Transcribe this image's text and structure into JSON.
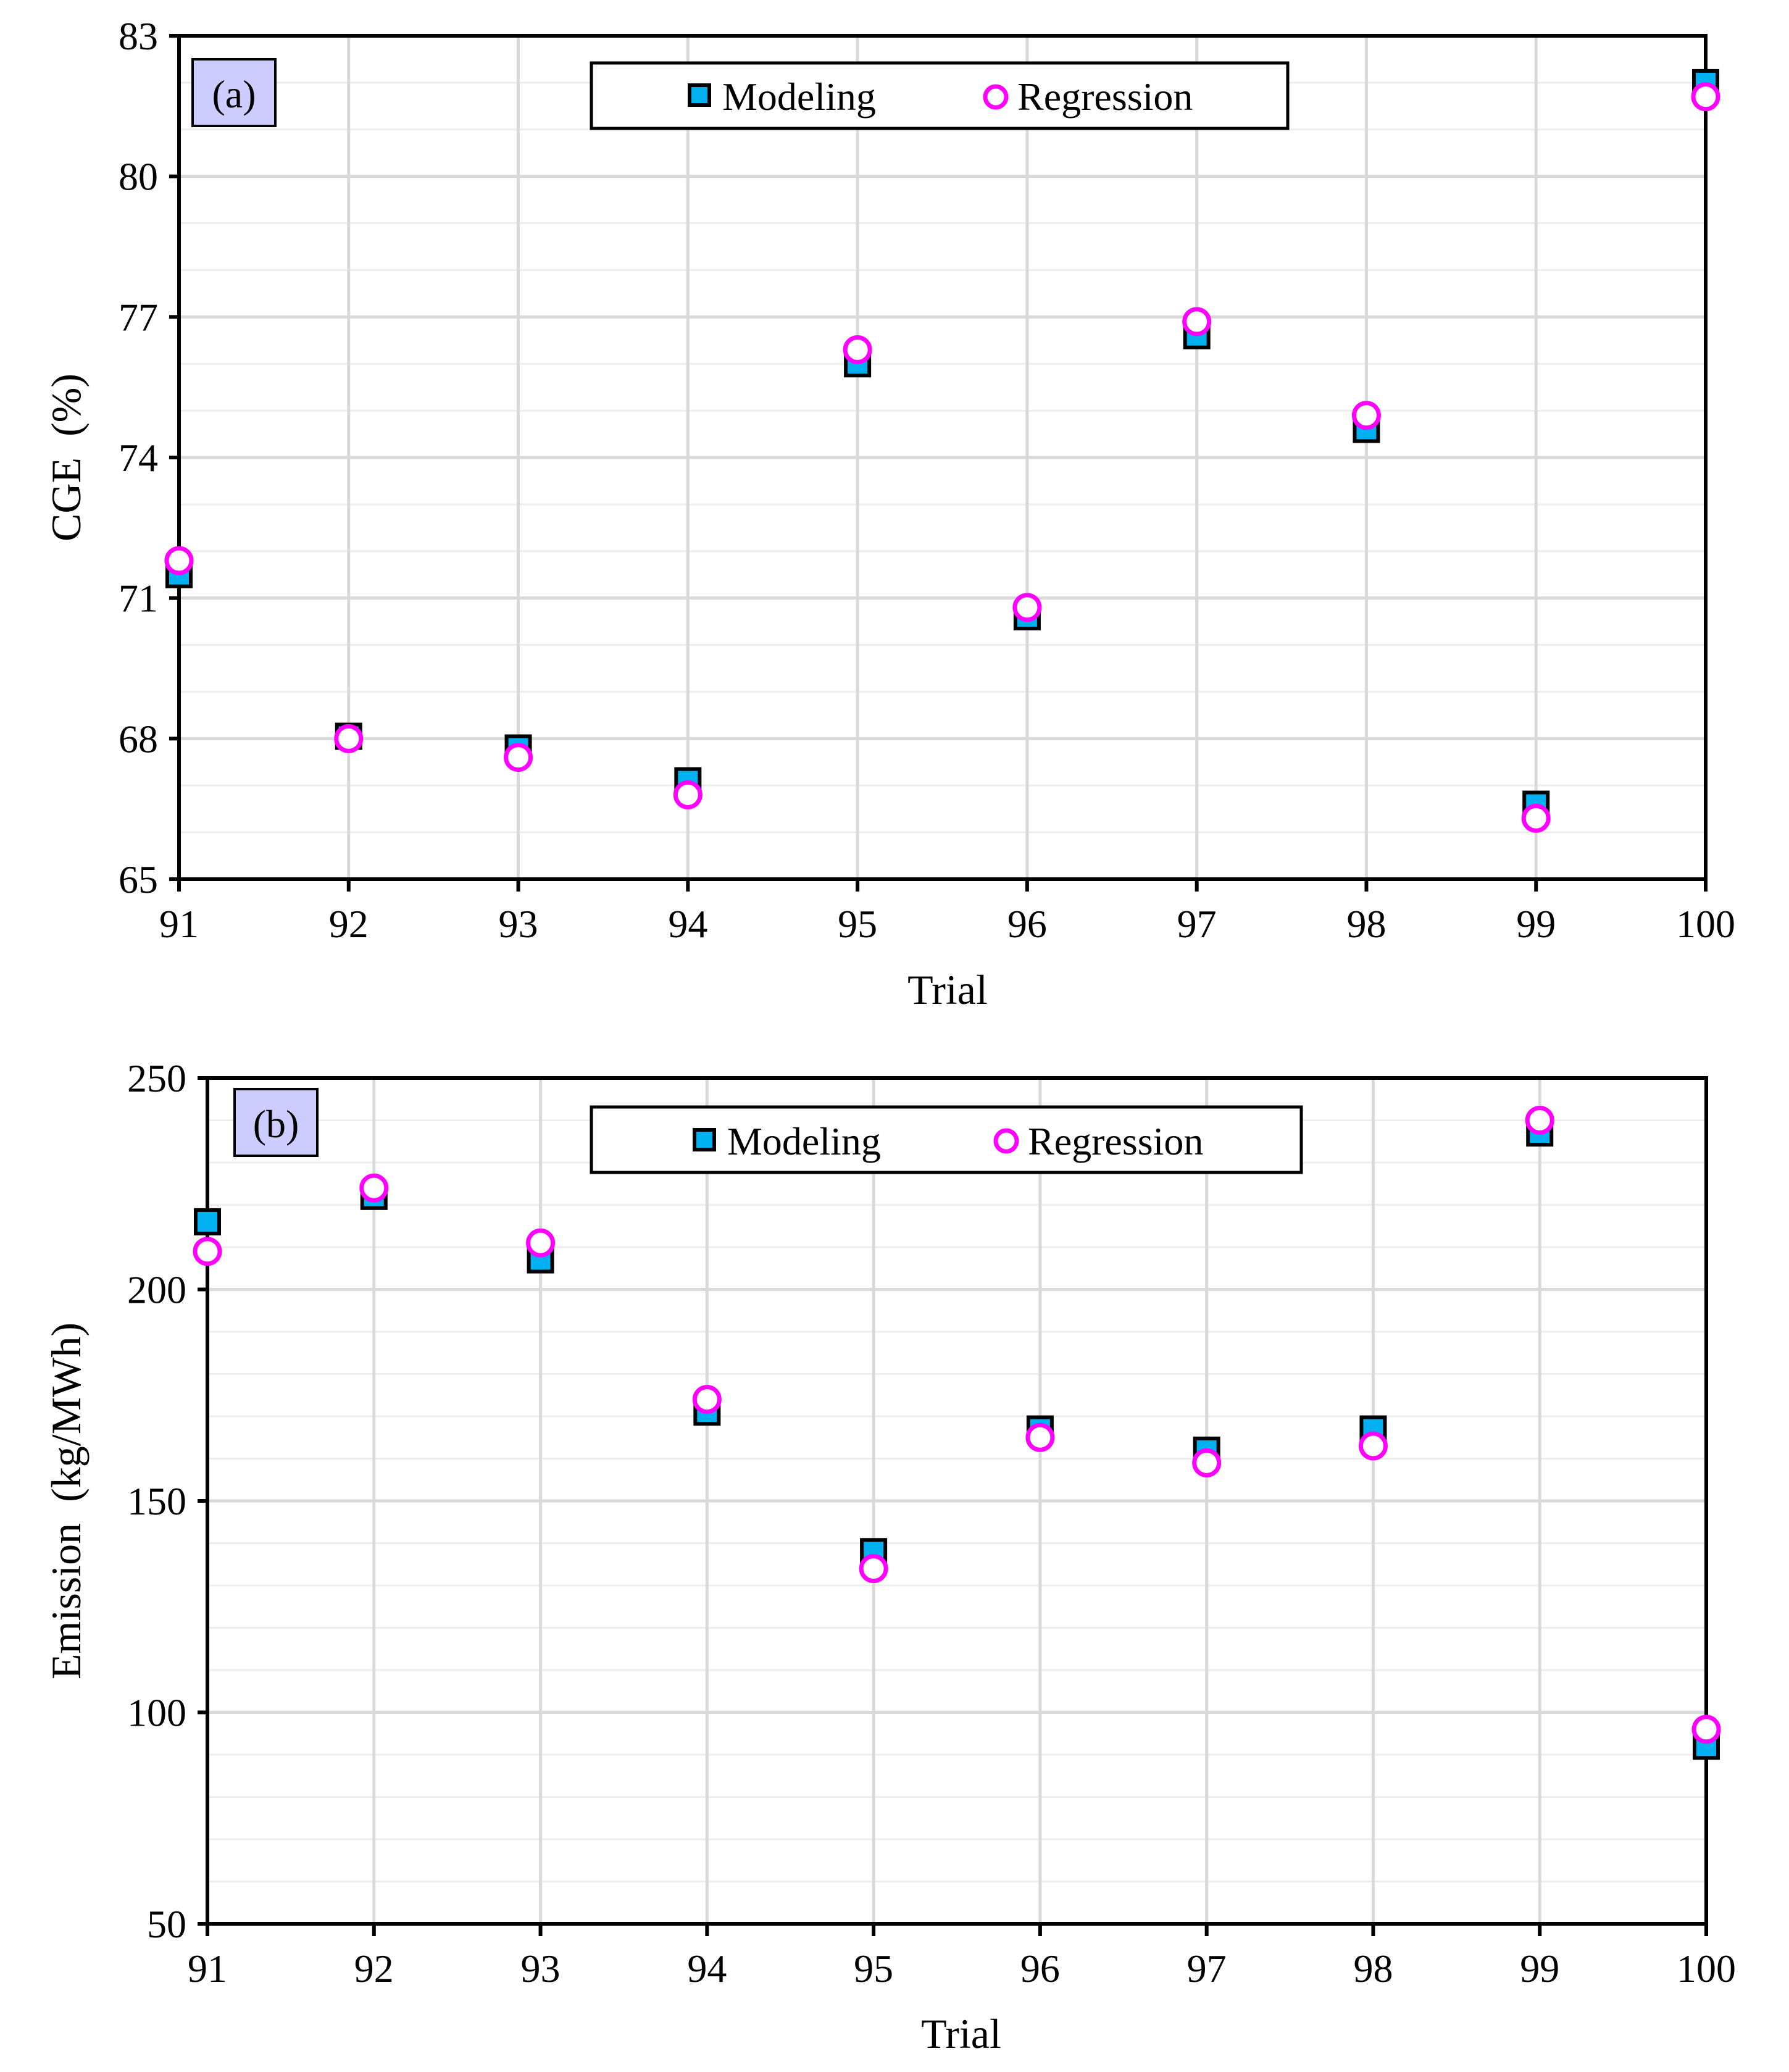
{
  "colors": {
    "modeling_fill": "#00b0f0",
    "modeling_edge": "#000000",
    "regression_edge": "#ff00ff",
    "panel_label_bg": "#ccccff",
    "grid": "#d9d9d9"
  },
  "chart_data": [
    {
      "type": "scatter",
      "panel_label": "(a)",
      "title": "",
      "xlabel": "Trial",
      "ylabel": "CGE  (%)",
      "x": [
        91,
        92,
        93,
        94,
        95,
        96,
        97,
        98,
        99,
        100
      ],
      "xticks": [
        "91",
        "92",
        "93",
        "94",
        "95",
        "96",
        "97",
        "98",
        "99",
        "100"
      ],
      "yticks": [
        "65",
        "68",
        "71",
        "74",
        "77",
        "80",
        "83"
      ],
      "ylim": [
        65,
        83
      ],
      "xlim": [
        91,
        100
      ],
      "grid": true,
      "legend_position": "top-center",
      "series": [
        {
          "name": "Modeling",
          "marker": "square",
          "values": [
            71.5,
            68.05,
            67.8,
            67.1,
            76.0,
            70.6,
            76.6,
            74.6,
            66.6,
            82.0
          ]
        },
        {
          "name": "Regression",
          "marker": "circle",
          "values": [
            71.8,
            68.0,
            67.6,
            66.8,
            76.3,
            70.8,
            76.9,
            74.9,
            66.3,
            81.7
          ]
        }
      ]
    },
    {
      "type": "scatter",
      "panel_label": "(b)",
      "title": "",
      "xlabel": "Trial",
      "ylabel": "Emission  (kg/MWh)",
      "x": [
        91,
        92,
        93,
        94,
        95,
        96,
        97,
        98,
        99,
        100
      ],
      "xticks": [
        "91",
        "92",
        "93",
        "94",
        "95",
        "96",
        "97",
        "98",
        "99",
        "100"
      ],
      "yticks": [
        "50",
        "100",
        "150",
        "200",
        "250"
      ],
      "ylim": [
        50,
        250
      ],
      "xlim": [
        91,
        100
      ],
      "grid": true,
      "legend_position": "top-center",
      "series": [
        {
          "name": "Modeling",
          "marker": "square",
          "values": [
            216,
            222,
            207,
            171,
            138,
            167,
            162,
            167,
            237,
            92
          ]
        },
        {
          "name": "Regression",
          "marker": "circle",
          "values": [
            209,
            224,
            211,
            174,
            134,
            165,
            159,
            163,
            240,
            96
          ]
        }
      ]
    }
  ]
}
